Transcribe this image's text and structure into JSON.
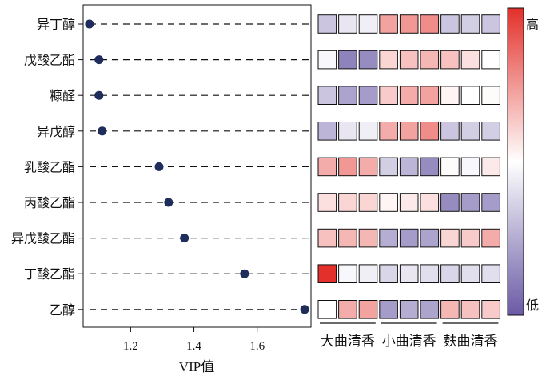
{
  "chart_data": {
    "type": "scatter",
    "xlabel": "VIP值",
    "xlim": [
      1.05,
      1.77
    ],
    "xticks": [
      1.2,
      1.4,
      1.6
    ],
    "compounds": [
      "异丁醇",
      "戊酸乙酯",
      "糠醛",
      "异戊醇",
      "乳酸乙酯",
      "丙酸乙酯",
      "异戊酸乙酯",
      "丁酸乙酯",
      "乙醇"
    ],
    "vip": [
      1.07,
      1.1,
      1.1,
      1.11,
      1.29,
      1.32,
      1.37,
      1.56,
      1.75
    ],
    "point_color": "#1f2d5c",
    "heatmap": {
      "groups": [
        "大曲清香",
        "小曲清香",
        "麸曲清香"
      ],
      "values": [
        [
          -0.35,
          -0.15,
          -0.1,
          0.45,
          0.5,
          0.55,
          -0.35,
          -0.3,
          -0.35
        ],
        [
          -0.05,
          -0.75,
          -0.7,
          0.2,
          0.3,
          0.35,
          0.3,
          0.15,
          0.0
        ],
        [
          -0.35,
          -0.55,
          -0.6,
          0.25,
          0.4,
          0.45,
          0.05,
          0.0,
          0.02
        ],
        [
          -0.45,
          -0.15,
          -0.1,
          0.4,
          0.45,
          0.55,
          -0.35,
          -0.3,
          -0.3
        ],
        [
          0.4,
          0.5,
          0.4,
          -0.3,
          -0.45,
          -0.7,
          0.02,
          -0.05,
          0.1
        ],
        [
          0.15,
          0.2,
          0.2,
          0.05,
          0.1,
          0.15,
          -0.7,
          -0.6,
          -0.6
        ],
        [
          0.3,
          0.35,
          0.35,
          -0.5,
          -0.6,
          -0.55,
          0.2,
          0.25,
          0.4
        ],
        [
          1.0,
          -0.05,
          -0.1,
          -0.25,
          -0.15,
          -0.2,
          -0.25,
          -0.2,
          -0.2
        ],
        [
          0.0,
          0.4,
          0.45,
          -0.6,
          -0.5,
          -0.55,
          0.35,
          0.3,
          0.25
        ]
      ]
    },
    "colorbar": {
      "high_label": "高",
      "low_label": "低",
      "high_color": "#e3302a",
      "mid_color": "#ffffff",
      "low_color": "#6a5aa5"
    }
  }
}
